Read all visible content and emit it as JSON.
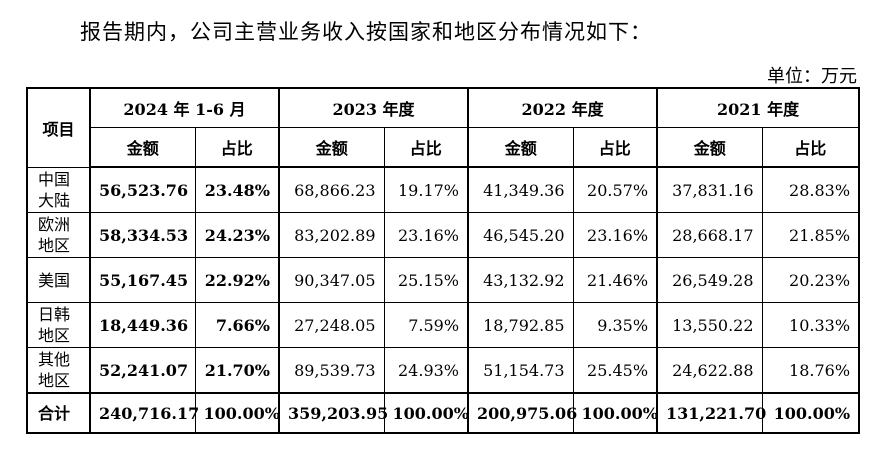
{
  "intro": "报告期内，公司主营业务收入按国家和地区分布情况如下：",
  "unit": "单位：万元",
  "table": {
    "project_header": "项目",
    "periods": [
      "2024 年 1-6 月",
      "2023 年度",
      "2022 年度",
      "2021 年度"
    ],
    "amount_label": "金额",
    "ratio_label": "占比",
    "rows": [
      {
        "region": "中国大陆",
        "cells": [
          "56,523.76",
          "23.48%",
          "68,866.23",
          "19.17%",
          "41,349.36",
          "20.57%",
          "37,831.16",
          "28.83%"
        ]
      },
      {
        "region": "欧洲地区",
        "cells": [
          "58,334.53",
          "24.23%",
          "83,202.89",
          "23.16%",
          "46,545.20",
          "23.16%",
          "28,668.17",
          "21.85%"
        ]
      },
      {
        "region": "美国",
        "cells": [
          "55,167.45",
          "22.92%",
          "90,347.05",
          "25.15%",
          "43,132.92",
          "21.46%",
          "26,549.28",
          "20.23%"
        ]
      },
      {
        "region": "日韩地区",
        "cells": [
          "18,449.36",
          "7.66%",
          "27,248.05",
          "7.59%",
          "18,792.85",
          "9.35%",
          "13,550.22",
          "10.33%"
        ]
      },
      {
        "region": "其他地区",
        "cells": [
          "52,241.07",
          "21.70%",
          "89,539.73",
          "24.93%",
          "51,154.73",
          "25.45%",
          "24,622.88",
          "18.76%"
        ]
      }
    ],
    "total": {
      "label": "合计",
      "cells": [
        "240,716.17",
        "100.00%",
        "359,203.95",
        "100.00%",
        "200,975.06",
        "100.00%",
        "131,221.70",
        "100.00%"
      ]
    }
  }
}
